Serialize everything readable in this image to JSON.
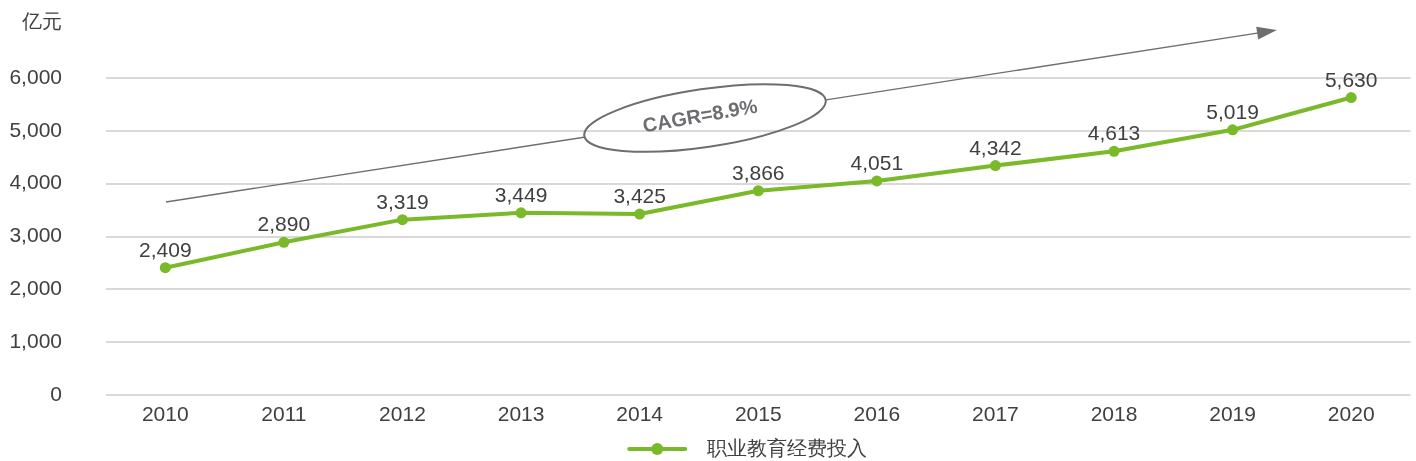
{
  "chart_data": {
    "type": "line",
    "ylabel": "亿元",
    "categories": [
      "2010",
      "2011",
      "2012",
      "2013",
      "2014",
      "2015",
      "2016",
      "2017",
      "2018",
      "2019",
      "2020"
    ],
    "series": [
      {
        "name": "职业教育经费投入",
        "color": "#7ab929",
        "values": [
          2409,
          2890,
          3319,
          3449,
          3425,
          3866,
          4051,
          4342,
          4613,
          5019,
          5630
        ],
        "value_labels": [
          "2,409",
          "2,890",
          "3,319",
          "3,449",
          "3,425",
          "3,866",
          "4,051",
          "4,342",
          "4,613",
          "5,019",
          "5,630"
        ]
      }
    ],
    "ylim": [
      0,
      6000
    ],
    "yticks": [
      0,
      {
        "value": 1000,
        "label": "1,000"
      },
      {
        "value": 2000,
        "label": "2,000"
      },
      {
        "value": 3000,
        "label": "3,000"
      },
      {
        "value": 4000,
        "label": "4,000"
      },
      {
        "value": 5000,
        "label": "5,000"
      },
      {
        "value": 6000,
        "label": "6,000"
      }
    ],
    "grid": "y",
    "legend": "bottom",
    "marker": "circle",
    "line_style": "solid",
    "annotations": [
      "CAGR=8.9%"
    ]
  }
}
